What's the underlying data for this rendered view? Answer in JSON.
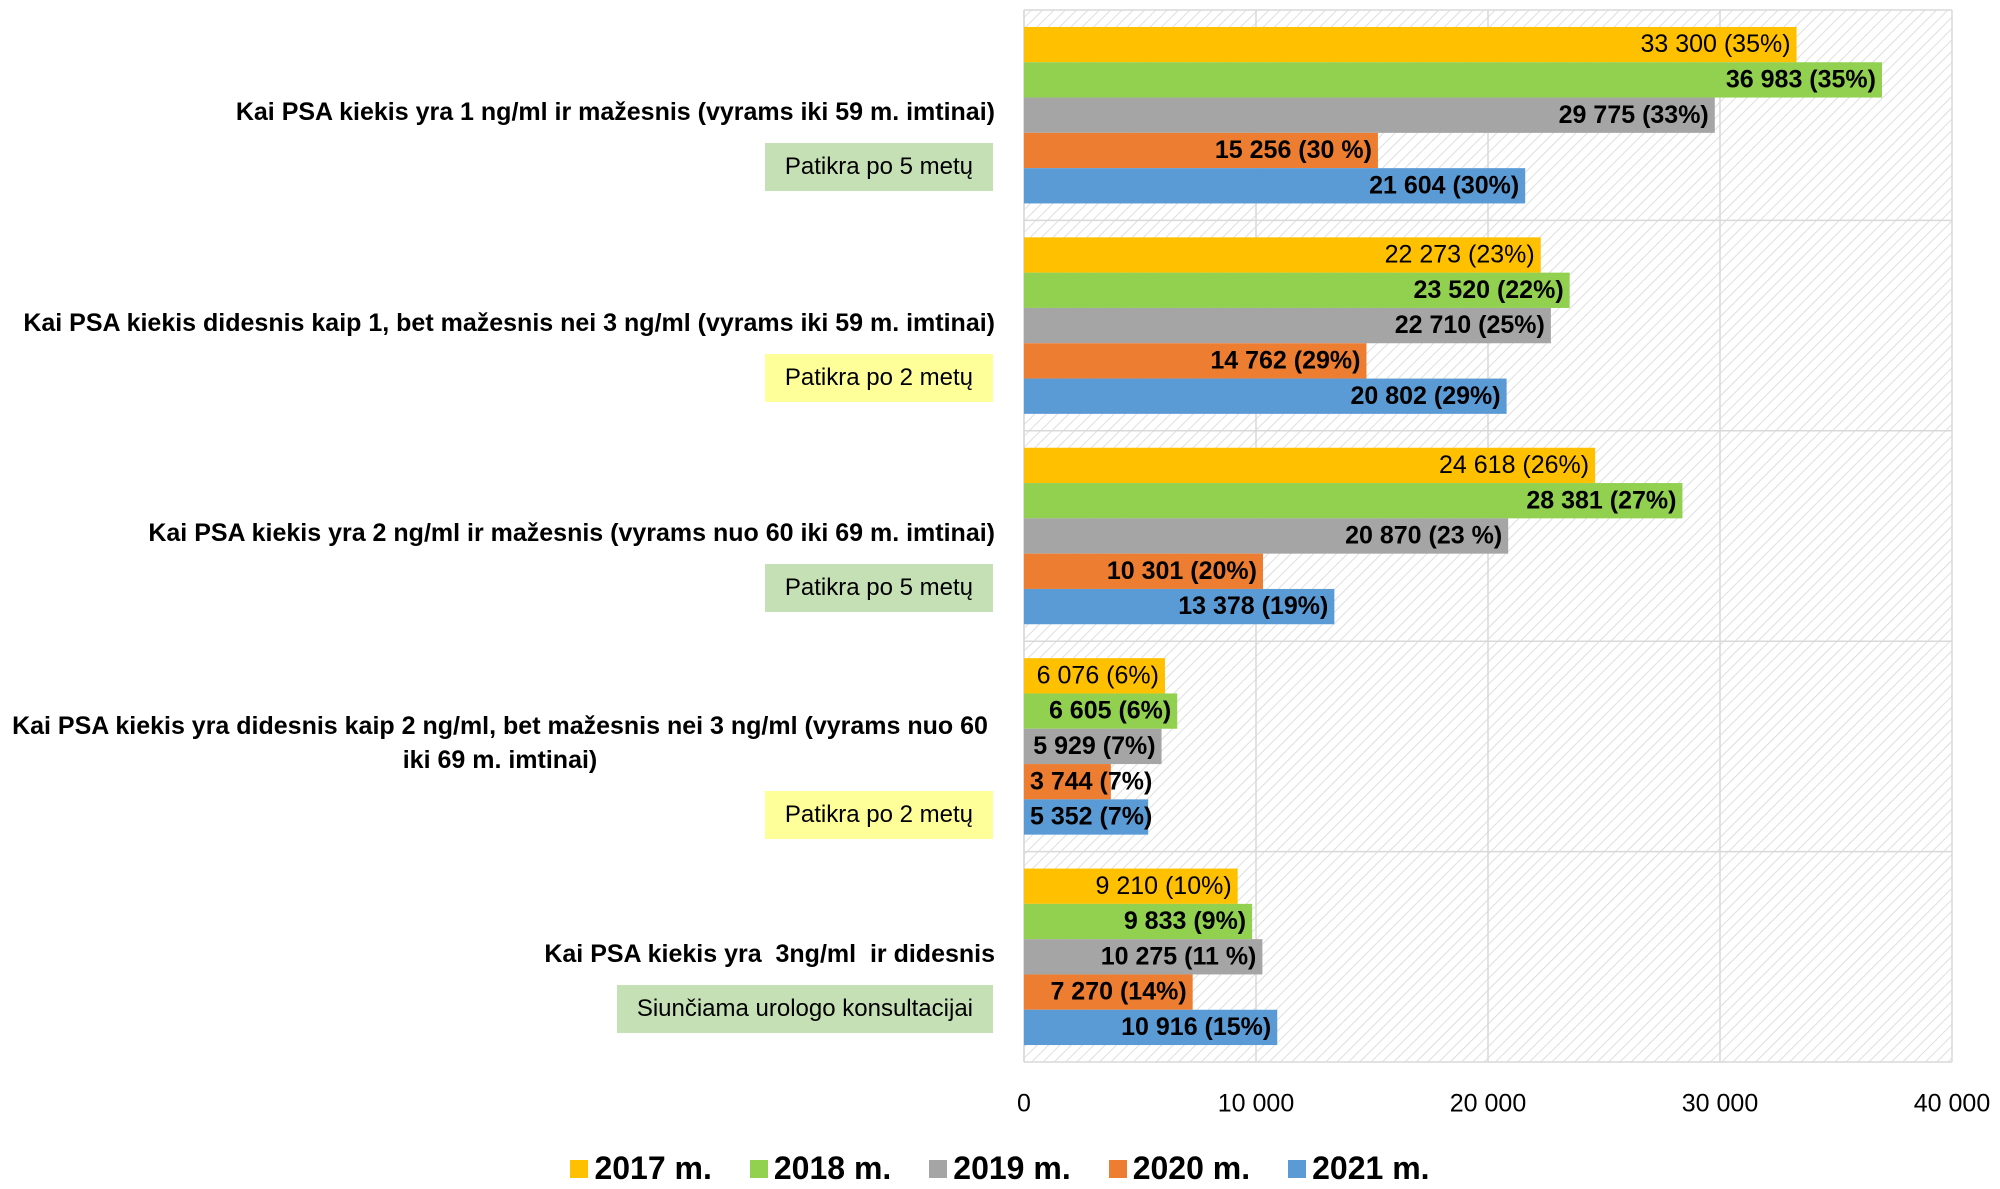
{
  "chart_data": {
    "type": "bar",
    "orientation": "horizontal",
    "categories": [
      "Kai PSA kiekis yra 1 ng/ml ir mažesnis (vyrams iki 59 m. imtinai)",
      "Kai PSA kiekis didesnis kaip 1, bet mažesnis nei 3 ng/ml (vyrams iki 59 m. imtinai)",
      "Kai PSA kiekis yra 2 ng/ml ir mažesnis (vyrams nuo 60 iki 69 m. imtinai)",
      "Kai PSA kiekis yra didesnis kaip 2 ng/ml, bet mažesnis nei 3 ng/ml (vyrams nuo 60 iki 69 m. imtinai)",
      "Kai PSA kiekis yra  3ng/ml  ir didesnis"
    ],
    "notes": [
      "Patikra po 5 metų",
      "Patikra po 2 metų",
      "Patikra po 5 metų",
      "Patikra po 2 metų",
      "Siunčiama urologo konsultacijai"
    ],
    "note_colors": [
      "#c5e0b4",
      "#ffff99",
      "#c5e0b4",
      "#ffff99",
      "#c5e0b4"
    ],
    "series": [
      {
        "name": "2017 m.",
        "color": "#ffc000",
        "values": [
          33300,
          22273,
          24618,
          6076,
          9210
        ],
        "value_labels": [
          "33 300 (35%)",
          "22 273 (23%)",
          "24 618 (26%)",
          "6 076 (6%)",
          "9 210 (10%)"
        ]
      },
      {
        "name": "2018 m.",
        "color": "#92d050",
        "values": [
          36983,
          23520,
          28381,
          6605,
          9833
        ],
        "value_labels": [
          "36 983 (35%)",
          "23 520 (22%)",
          "28 381 (27%)",
          "6 605 (6%)",
          "9 833 (9%)"
        ]
      },
      {
        "name": "2019 m.",
        "color": "#a5a5a5",
        "values": [
          29775,
          22710,
          20870,
          5929,
          10275
        ],
        "value_labels": [
          "29 775 (33%)",
          "22 710 (25%)",
          "20 870 (23 %)",
          "5 929 (7%)",
          "10 275 (11 %)"
        ]
      },
      {
        "name": "2020 m.",
        "color": "#ed7d31",
        "values": [
          15256,
          14762,
          10301,
          3744,
          7270
        ],
        "value_labels": [
          "15 256 (30 %)",
          "14 762 (29%)",
          "10 301 (20%)",
          "3 744 (7%)",
          "7 270 (14%)"
        ]
      },
      {
        "name": "2021 m.",
        "color": "#5b9bd5",
        "values": [
          21604,
          20802,
          13378,
          5352,
          10916
        ],
        "value_labels": [
          "21 604 (30%)",
          "20 802 (29%)",
          "13 378 (19%)",
          "5 352 (7%)",
          "10 916 (15%)"
        ]
      }
    ],
    "xlim": [
      0,
      40000
    ],
    "xticks": [
      0,
      {
        "value": 10000,
        "label": "10 000"
      },
      {
        "value": 20000,
        "label": "20 000"
      },
      {
        "value": 30000,
        "label": "30 000"
      },
      {
        "value": 40000,
        "label": "40 000"
      }
    ],
    "grid": true,
    "legend": "bottom"
  }
}
